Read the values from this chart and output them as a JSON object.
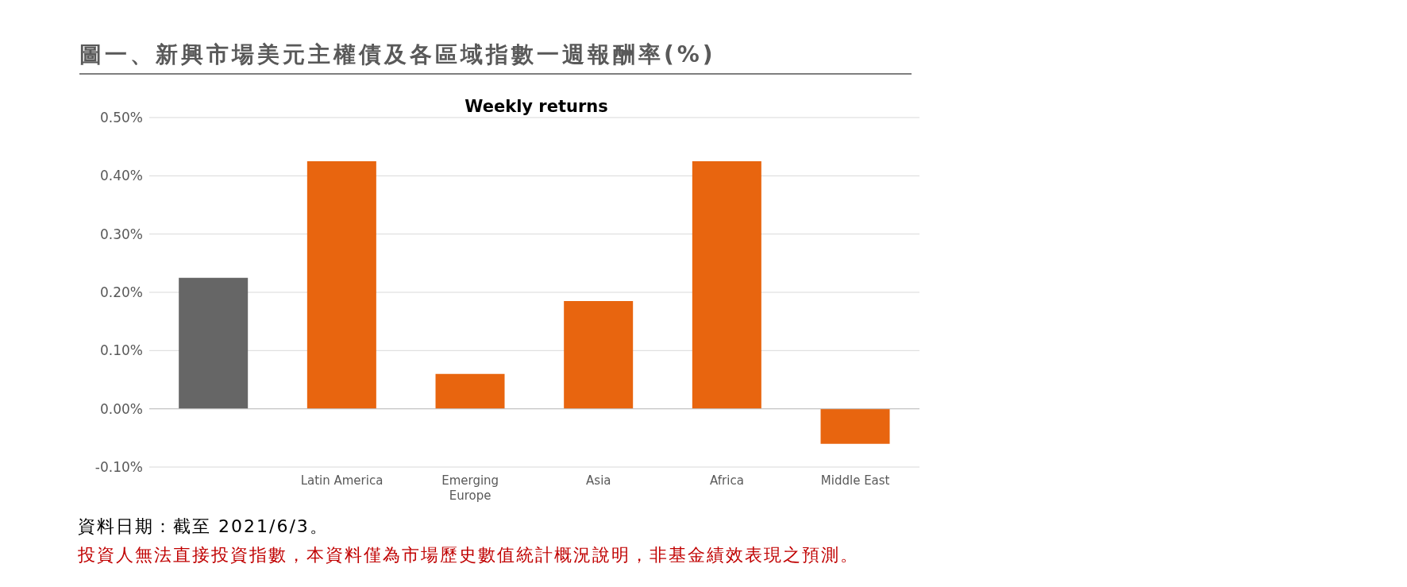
{
  "chart_data": {
    "type": "bar",
    "title": "圖一、新興市場美元主權債及各區域指數一週報酬率(%)",
    "subtitle": "Weekly returns",
    "categories": [
      null,
      "Latin America",
      "Emerging Europe",
      "Asia",
      "Africa",
      "Middle East"
    ],
    "values": [
      0.225,
      0.425,
      0.06,
      0.185,
      0.425,
      -0.06
    ],
    "colors": [
      "#666666",
      "#e8650f",
      "#e8650f",
      "#e8650f",
      "#e8650f",
      "#e8650f"
    ],
    "ylim": [
      -0.1,
      0.5
    ],
    "yticks": [
      {
        "value": -0.1,
        "label": "-0.10%"
      },
      {
        "value": 0,
        "label": "0.00%"
      },
      {
        "value": 0.1,
        "label": "0.10%"
      },
      {
        "value": 0.2,
        "label": "0.20%"
      },
      {
        "value": 0.3,
        "label": "0.30%"
      },
      {
        "value": 0.4,
        "label": "0.40%"
      },
      {
        "value": 0.5,
        "label": "0.50%"
      }
    ],
    "grid": "y",
    "legend": false,
    "annotations": [
      "資料日期：截至 2021/6/3。",
      "投資人無法直接投資指數，本資料僅為市場歷史數值統計概況說明，非基金績效表現之預測。"
    ]
  }
}
